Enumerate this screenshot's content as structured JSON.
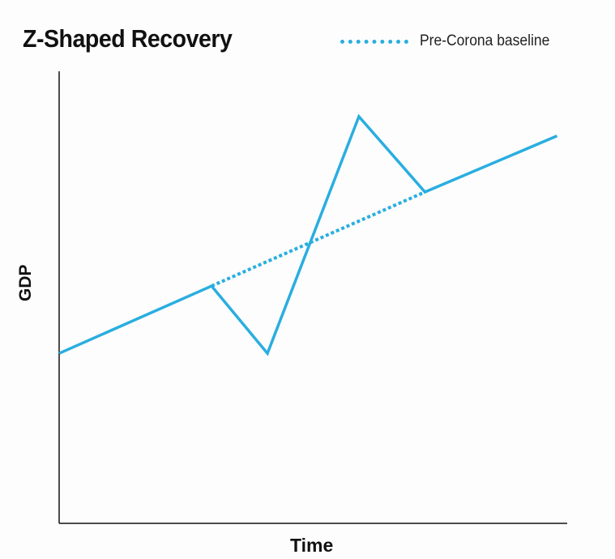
{
  "chart_data": {
    "type": "line",
    "title": "Z-Shaped Recovery",
    "xlabel": "Time",
    "ylabel": "GDP",
    "xlim": [
      0,
      100
    ],
    "ylim": [
      0,
      100
    ],
    "grid": false,
    "legend_position": "top-right",
    "series": [
      {
        "x": [
          0,
          30,
          41,
          59,
          72,
          98
        ],
        "y": [
          37.6,
          52.5,
          37.6,
          90,
          73.3,
          85.7
        ],
        "color": "#29aee0",
        "style": "solid"
      },
      {
        "name": "Pre-Corona baseline",
        "x": [
          30,
          72
        ],
        "y": [
          52.5,
          73.3
        ],
        "color": "#29aee0",
        "style": "dotted"
      }
    ]
  }
}
